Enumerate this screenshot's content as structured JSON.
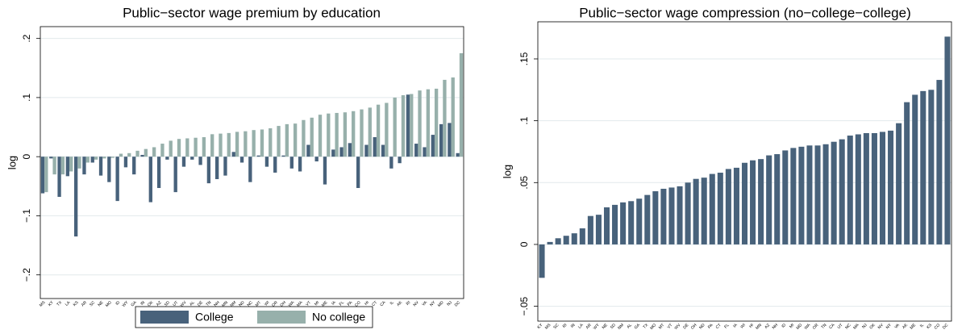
{
  "chart_data": [
    {
      "type": "bar",
      "title": "Public−sector wage premium by education",
      "y_label": "log",
      "categories": [
        "MS",
        "KY",
        "TX",
        "LA",
        "KS",
        "AR",
        "SC",
        "NE",
        "MO",
        "ID",
        "WY",
        "GA",
        "IN",
        "OK",
        "AZ",
        "SD",
        "UT",
        "WV",
        "AL",
        "DE",
        "TN",
        "NH",
        "MN",
        "NM",
        "ND",
        "NC",
        "MT",
        "WI",
        "OR",
        "OH",
        "WA",
        "MA",
        "VT",
        "MI",
        "ME",
        "IA",
        "FL",
        "PA",
        "CO",
        "HI",
        "CT",
        "CA",
        "IL",
        "AK",
        "RI",
        "NV",
        "VA",
        "NY",
        "MD",
        "NJ",
        "DC"
      ],
      "series": [
        {
          "name": "College",
          "color": "#48627b",
          "values": [
            -0.062,
            -0.003,
            -0.068,
            -0.033,
            -0.135,
            -0.03,
            -0.01,
            -0.032,
            -0.043,
            -0.075,
            -0.018,
            -0.03,
            0.003,
            -0.077,
            -0.053,
            -0.005,
            -0.06,
            -0.017,
            -0.005,
            -0.014,
            -0.045,
            -0.038,
            -0.032,
            0.008,
            -0.01,
            -0.043,
            0.002,
            -0.017,
            -0.027,
            0.002,
            -0.02,
            -0.025,
            0.02,
            -0.008,
            -0.047,
            0.012,
            0.016,
            0.023,
            -0.053,
            0.02,
            0.033,
            0.02,
            -0.02,
            -0.011,
            0.105,
            0.022,
            0.016,
            0.037,
            0.055,
            0.057,
            0.006
          ]
        },
        {
          "name": "No college",
          "color": "#97b0ab",
          "values": [
            -0.06,
            -0.03,
            -0.03,
            -0.025,
            -0.02,
            -0.01,
            -0.005,
            -0.003,
            -0.002,
            0.005,
            0.006,
            0.01,
            0.013,
            0.016,
            0.022,
            0.027,
            0.03,
            0.031,
            0.032,
            0.033,
            0.038,
            0.039,
            0.04,
            0.042,
            0.043,
            0.045,
            0.046,
            0.048,
            0.052,
            0.055,
            0.056,
            0.062,
            0.066,
            0.071,
            0.073,
            0.074,
            0.075,
            0.077,
            0.08,
            0.083,
            0.088,
            0.091,
            0.1,
            0.104,
            0.106,
            0.112,
            0.114,
            0.115,
            0.13,
            0.134,
            0.175
          ]
        }
      ],
      "ylim": [
        -0.24,
        0.22
      ],
      "yticks": [
        {
          "value": -0.2,
          "label": "−.2"
        },
        {
          "value": -0.1,
          "label": "−.1"
        },
        0,
        {
          "value": 0.1,
          "label": ".1"
        },
        {
          "value": 0.2,
          "label": ".2"
        }
      ],
      "grid": true,
      "legend": "bottom"
    },
    {
      "type": "bar",
      "title": "Public−sector wage compression (no−college−college)",
      "y_label": "log",
      "categories": [
        "KY",
        "MS",
        "SC",
        "RI",
        "IN",
        "LA",
        "AR",
        "WY",
        "NE",
        "SD",
        "NM",
        "AL",
        "GA",
        "TX",
        "MO",
        "MT",
        "VT",
        "WV",
        "DE",
        "OH",
        "ND",
        "PA",
        "CT",
        "FL",
        "IA",
        "WI",
        "HI",
        "MN",
        "AZ",
        "NH",
        "ID",
        "MI",
        "MD",
        "WA",
        "OR",
        "TN",
        "CA",
        "UT",
        "NC",
        "MA",
        "NJ",
        "OK",
        "NV",
        "NY",
        "VA",
        "AK",
        "ME",
        "IL",
        "KS",
        "CO",
        "DC"
      ],
      "values": [
        -0.027,
        0.002,
        0.005,
        0.007,
        0.009,
        0.013,
        0.023,
        0.024,
        0.03,
        0.032,
        0.034,
        0.035,
        0.037,
        0.04,
        0.043,
        0.045,
        0.046,
        0.047,
        0.05,
        0.053,
        0.054,
        0.057,
        0.058,
        0.061,
        0.062,
        0.066,
        0.068,
        0.069,
        0.072,
        0.073,
        0.076,
        0.078,
        0.079,
        0.08,
        0.08,
        0.081,
        0.083,
        0.085,
        0.088,
        0.089,
        0.09,
        0.09,
        0.091,
        0.092,
        0.098,
        0.115,
        0.121,
        0.124,
        0.125,
        0.133,
        0.168
      ],
      "color": "#48627b",
      "ylim": [
        -0.062,
        0.18
      ],
      "yticks": [
        {
          "value": -0.05,
          "label": "−.05"
        },
        0,
        {
          "value": 0.05,
          "label": ".05"
        },
        {
          "value": 0.1,
          "label": ".1"
        },
        {
          "value": 0.15,
          "label": ".15"
        }
      ],
      "grid": true
    }
  ]
}
